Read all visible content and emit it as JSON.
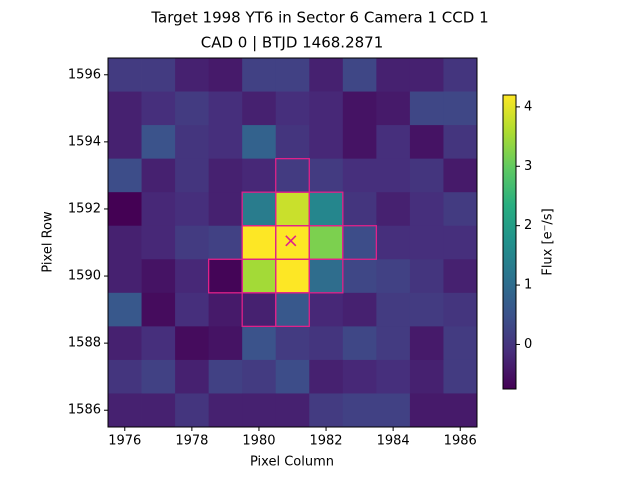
{
  "chart_data": {
    "type": "heatmap",
    "title": "Target 1998 YT6 in Sector 6 Camera 1 CCD 1",
    "subtitle": "CAD 0 | BTJD 1468.2871",
    "x_label": "Pixel Column",
    "y_label": "Pixel Row",
    "colorbar_label": "Flux [e⁻/s]",
    "colormap": "viridis",
    "x": [
      1976,
      1977,
      1978,
      1979,
      1980,
      1981,
      1982,
      1983,
      1984,
      1985,
      1986
    ],
    "y": [
      1596,
      1595,
      1594,
      1593,
      1592,
      1591,
      1590,
      1589,
      1588,
      1587,
      1586
    ],
    "z": [
      [
        0.1,
        0.1,
        -0.3,
        -0.4,
        0.2,
        0.2,
        -0.3,
        0.3,
        -0.3,
        -0.3,
        0.0
      ],
      [
        -0.3,
        -0.1,
        0.1,
        -0.1,
        -0.3,
        -0.1,
        -0.2,
        -0.5,
        -0.4,
        0.3,
        0.3
      ],
      [
        -0.3,
        0.5,
        0.0,
        -0.1,
        0.8,
        0.0,
        -0.2,
        -0.5,
        -0.1,
        -0.5,
        0.0
      ],
      [
        0.4,
        -0.3,
        0.0,
        -0.3,
        -0.2,
        0.1,
        0.1,
        -0.1,
        -0.1,
        0.0,
        -0.4
      ],
      [
        -0.75,
        -0.2,
        -0.1,
        -0.3,
        1.3,
        3.8,
        1.5,
        0.0,
        -0.3,
        -0.1,
        0.1
      ],
      [
        -0.3,
        -0.2,
        0.1,
        0.2,
        4.2,
        4.2,
        3.2,
        0.4,
        -0.1,
        -0.1,
        -0.1
      ],
      [
        -0.3,
        -0.5,
        -0.2,
        -0.7,
        3.5,
        4.2,
        1.0,
        0.3,
        0.2,
        0.0,
        -0.3
      ],
      [
        0.6,
        -0.6,
        -0.1,
        -0.4,
        -0.3,
        0.6,
        -0.2,
        -0.3,
        0.1,
        0.1,
        0.0
      ],
      [
        -0.3,
        -0.1,
        -0.6,
        -0.5,
        0.5,
        0.1,
        0.0,
        0.3,
        0.1,
        -0.4,
        0.1
      ],
      [
        0.0,
        0.2,
        -0.3,
        0.2,
        0.1,
        0.4,
        -0.3,
        -0.2,
        -0.1,
        -0.3,
        0.1
      ],
      [
        -0.3,
        -0.3,
        0.0,
        -0.3,
        -0.3,
        -0.3,
        0.1,
        0.2,
        0.2,
        -0.4,
        -0.4
      ]
    ],
    "xlim": [
      1975.5,
      1986.5
    ],
    "ylim": [
      1585.5,
      1596.5
    ],
    "xticks": [
      1976,
      1978,
      1980,
      1982,
      1984,
      1986
    ],
    "yticks": [
      1586,
      1588,
      1590,
      1592,
      1594,
      1596
    ],
    "clim": [
      -0.75,
      4.2
    ],
    "cticks": [
      0,
      1,
      2,
      3,
      4
    ],
    "aperture_color": "#e0218a",
    "aperture": [
      [
        1981,
        1593
      ],
      [
        1980,
        1592
      ],
      [
        1981,
        1592
      ],
      [
        1982,
        1592
      ],
      [
        1980,
        1591
      ],
      [
        1981,
        1591
      ],
      [
        1982,
        1591
      ],
      [
        1983,
        1591
      ],
      [
        1979,
        1590
      ],
      [
        1980,
        1590
      ],
      [
        1981,
        1590
      ],
      [
        1982,
        1590
      ],
      [
        1980,
        1589
      ],
      [
        1981,
        1589
      ]
    ],
    "marker": {
      "x": 1980.95,
      "y": 1591.05,
      "color": "#e0218a"
    }
  }
}
